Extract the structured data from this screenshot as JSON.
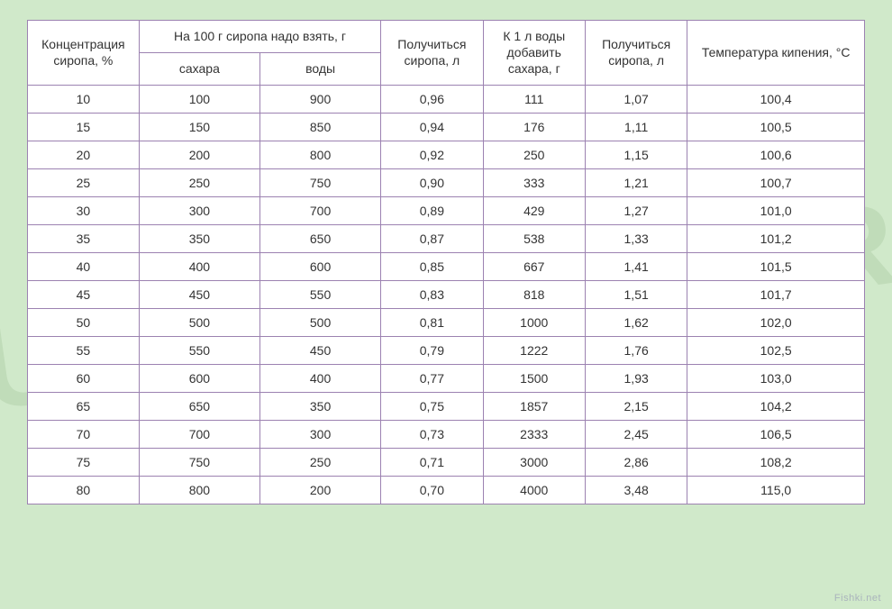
{
  "watermark_text": "SUPERCOOK.ORG",
  "credit_text": "Fishki.net",
  "table": {
    "background_color": "#ffffff",
    "border_color": "#9c82b1",
    "text_color": "#333333",
    "font_size_pt": 11,
    "columns": {
      "conc": {
        "label": "Концентрация сиропа, %"
      },
      "per100": {
        "label": "На 100 г сиропа надо взять, г"
      },
      "sugar": {
        "label": "сахара"
      },
      "water": {
        "label": "воды"
      },
      "syrupL": {
        "label": "Получиться сиропа, л"
      },
      "addsug": {
        "label": "К 1 л воды добавить сахара, г"
      },
      "syrup2": {
        "label": "Получиться сиропа, л"
      },
      "temp": {
        "label": "Температура кипения, °C"
      }
    },
    "rows": [
      {
        "conc": "10",
        "sugar": "100",
        "water": "900",
        "syrupL": "0,96",
        "addsug": "111",
        "syrup2": "1,07",
        "temp": "100,4"
      },
      {
        "conc": "15",
        "sugar": "150",
        "water": "850",
        "syrupL": "0,94",
        "addsug": "176",
        "syrup2": "1,11",
        "temp": "100,5"
      },
      {
        "conc": "20",
        "sugar": "200",
        "water": "800",
        "syrupL": "0,92",
        "addsug": "250",
        "syrup2": "1,15",
        "temp": "100,6"
      },
      {
        "conc": "25",
        "sugar": "250",
        "water": "750",
        "syrupL": "0,90",
        "addsug": "333",
        "syrup2": "1,21",
        "temp": "100,7"
      },
      {
        "conc": "30",
        "sugar": "300",
        "water": "700",
        "syrupL": "0,89",
        "addsug": "429",
        "syrup2": "1,27",
        "temp": "101,0"
      },
      {
        "conc": "35",
        "sugar": "350",
        "water": "650",
        "syrupL": "0,87",
        "addsug": "538",
        "syrup2": "1,33",
        "temp": "101,2"
      },
      {
        "conc": "40",
        "sugar": "400",
        "water": "600",
        "syrupL": "0,85",
        "addsug": "667",
        "syrup2": "1,41",
        "temp": "101,5"
      },
      {
        "conc": "45",
        "sugar": "450",
        "water": "550",
        "syrupL": "0,83",
        "addsug": "818",
        "syrup2": "1,51",
        "temp": "101,7"
      },
      {
        "conc": "50",
        "sugar": "500",
        "water": "500",
        "syrupL": "0,81",
        "addsug": "1000",
        "syrup2": "1,62",
        "temp": "102,0"
      },
      {
        "conc": "55",
        "sugar": "550",
        "water": "450",
        "syrupL": "0,79",
        "addsug": "1222",
        "syrup2": "1,76",
        "temp": "102,5"
      },
      {
        "conc": "60",
        "sugar": "600",
        "water": "400",
        "syrupL": "0,77",
        "addsug": "1500",
        "syrup2": "1,93",
        "temp": "103,0"
      },
      {
        "conc": "65",
        "sugar": "650",
        "water": "350",
        "syrupL": "0,75",
        "addsug": "1857",
        "syrup2": "2,15",
        "temp": "104,2"
      },
      {
        "conc": "70",
        "sugar": "700",
        "water": "300",
        "syrupL": "0,73",
        "addsug": "2333",
        "syrup2": "2,45",
        "temp": "106,5"
      },
      {
        "conc": "75",
        "sugar": "750",
        "water": "250",
        "syrupL": "0,71",
        "addsug": "3000",
        "syrup2": "2,86",
        "temp": "108,2"
      },
      {
        "conc": "80",
        "sugar": "800",
        "water": "200",
        "syrupL": "0,70",
        "addsug": "4000",
        "syrup2": "3,48",
        "temp": "115,0"
      }
    ]
  },
  "page_background": "#d0e9ca"
}
